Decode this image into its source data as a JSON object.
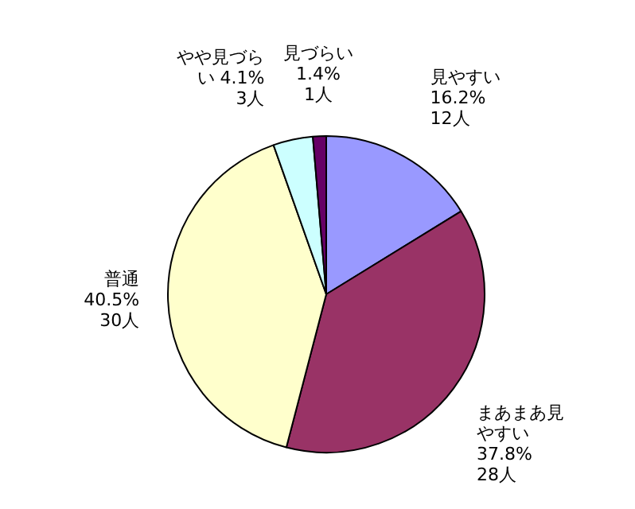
{
  "chart_data": {
    "type": "pie",
    "categories": [
      "見やすい",
      "まあまあ見やすい",
      "普通",
      "やや見づらい",
      "見づらい"
    ],
    "values": [
      12,
      28,
      30,
      3,
      1
    ],
    "value_labels": [
      "16.2%\n12人",
      "37.8%\n28人",
      "40.5%\n30人",
      "4.1%\n3人",
      "1.4%\n1人"
    ],
    "colors": [
      "#9999ff",
      "#993366",
      "#ffffcc",
      "#ccffff",
      "#660066"
    ],
    "legend": false
  }
}
